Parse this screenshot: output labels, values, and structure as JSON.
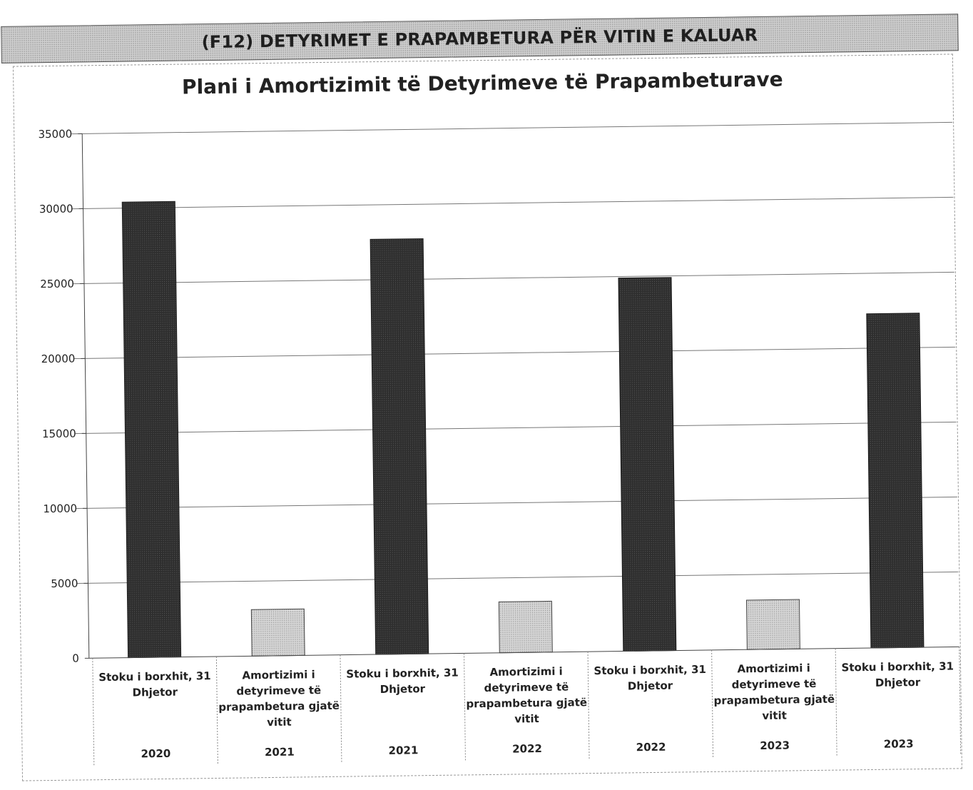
{
  "header": {
    "title": "(F12) DETYRIMET E PRAPAMBETURA PËR VITIN E KALUAR"
  },
  "chart_data": {
    "type": "bar",
    "title": "Plani i Amortizimit të Detyrimeve të Prapambeturave",
    "xlabel": "",
    "ylabel": "",
    "ylim": [
      0,
      35000
    ],
    "yticks": [
      0,
      5000,
      10000,
      15000,
      20000,
      25000,
      30000,
      35000
    ],
    "grid": true,
    "legend": "none",
    "categories": [
      {
        "label": "Stoku i borxhit, 31 Dhjetor",
        "lines": [
          "Stoku i borxhit, 31",
          "Dhjetor"
        ],
        "year": "2020",
        "value": 30400,
        "kind": "stock"
      },
      {
        "label": "Amortizimi i detyrimeve të prapambetura gjatë vitit",
        "lines": [
          "Amortizimi i",
          "detyrimeve të",
          "prapambetura gjatë",
          "vitit"
        ],
        "year": "2021",
        "value": 3100,
        "kind": "amortization"
      },
      {
        "label": "Stoku i borxhit, 31 Dhjetor",
        "lines": [
          "Stoku i borxhit, 31",
          "Dhjetor"
        ],
        "year": "2021",
        "value": 27700,
        "kind": "stock"
      },
      {
        "label": "Amortizimi i detyrimeve të prapambetura gjatë vitit",
        "lines": [
          "Amortizimi i",
          "detyrimeve të",
          "prapambetura gjatë",
          "vitit"
        ],
        "year": "2022",
        "value": 3400,
        "kind": "amortization"
      },
      {
        "label": "Stoku i borxhit, 31 Dhjetor",
        "lines": [
          "Stoku i borxhit, 31",
          "Dhjetor"
        ],
        "year": "2022",
        "value": 24900,
        "kind": "stock"
      },
      {
        "label": "Amortizimi i detyrimeve të prapambetura gjatë vitit",
        "lines": [
          "Amortizimi i",
          "detyrimeve të",
          "prapambetura gjatë",
          "vitit"
        ],
        "year": "2023",
        "value": 3300,
        "kind": "amortization"
      },
      {
        "label": "Stoku i borxhit, 31 Dhjetor",
        "lines": [
          "Stoku i borxhit, 31",
          "Dhjetor"
        ],
        "year": "2023",
        "value": 22300,
        "kind": "stock"
      }
    ],
    "colors": {
      "stock": "#2e2e2e",
      "amortization": "#c9c9c9"
    }
  }
}
